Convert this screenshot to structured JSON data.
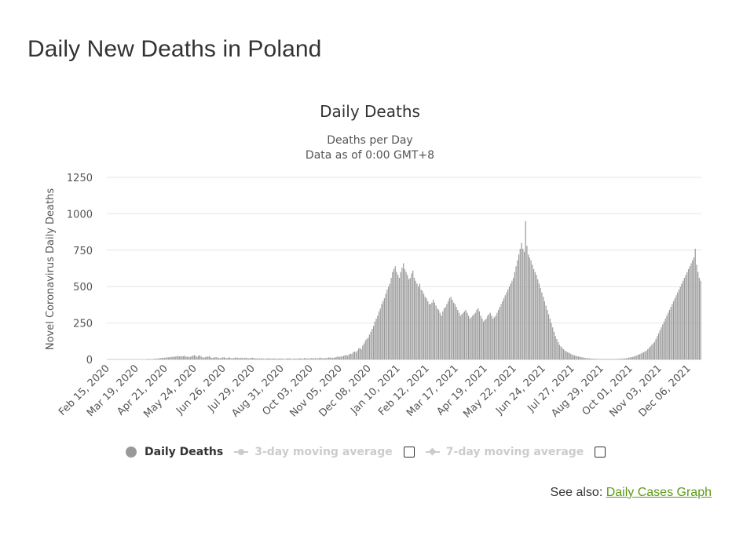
{
  "page": {
    "title": "Daily New Deaths in Poland",
    "see_also_label": "See also:",
    "see_also_link": "Daily Cases Graph"
  },
  "legend": {
    "items": [
      {
        "label": "Daily Deaths",
        "active": true
      },
      {
        "label": "3-day moving average",
        "active": false
      },
      {
        "label": "7-day moving average",
        "active": false
      }
    ]
  },
  "colors": {
    "bar": "#999999",
    "grid": "#e6e6e6",
    "inactive": "#cccccc",
    "link": "#5b9a18"
  },
  "chart_data": {
    "type": "bar",
    "title": "Daily Deaths",
    "subtitle": [
      "Deaths per Day",
      "Data as of 0:00 GMT+8"
    ],
    "ylabel": "Novel Coronavirus Daily Deaths",
    "xlabel": "",
    "ylim": [
      0,
      1250
    ],
    "yticks": [
      0,
      250,
      500,
      750,
      1000,
      1250
    ],
    "xticks": [
      "Feb 15, 2020",
      "Mar 19, 2020",
      "Apr 21, 2020",
      "May 24, 2020",
      "Jun 26, 2020",
      "Jul 29, 2020",
      "Aug 31, 2020",
      "Oct 03, 2020",
      "Nov 05, 2020",
      "Dec 08, 2020",
      "Jan 10, 2021",
      "Feb 12, 2021",
      "Mar 17, 2021",
      "Apr 19, 2021",
      "May 22, 2021",
      "Jun 24, 2021",
      "Jul 27, 2021",
      "Aug 29, 2021",
      "Oct 01, 2021",
      "Nov 03, 2021",
      "Dec 06, 2021"
    ],
    "start_date": "Feb 15, 2020",
    "grid": true,
    "series": [
      {
        "name": "Daily Deaths",
        "values": [
          0,
          0,
          0,
          0,
          0,
          0,
          0,
          0,
          0,
          0,
          0,
          0,
          0,
          0,
          0,
          0,
          0,
          0,
          0,
          0,
          0,
          0,
          0,
          0,
          0,
          0,
          0,
          0,
          0,
          1,
          1,
          1,
          2,
          2,
          3,
          5,
          6,
          5,
          8,
          9,
          10,
          12,
          11,
          13,
          15,
          14,
          16,
          18,
          17,
          20,
          19,
          22,
          24,
          20,
          23,
          21,
          22,
          25,
          18,
          20,
          15,
          18,
          22,
          26,
          30,
          24,
          18,
          25,
          28,
          20,
          15,
          12,
          16,
          18,
          20,
          22,
          15,
          10,
          12,
          14,
          16,
          12,
          10,
          8,
          12,
          14,
          15,
          10,
          9,
          12,
          14,
          8,
          7,
          10,
          12,
          13,
          11,
          9,
          10,
          12,
          8,
          10,
          12,
          9,
          7,
          8,
          10,
          12,
          9,
          6,
          8,
          5,
          7,
          6,
          8,
          5,
          4,
          6,
          8,
          7,
          5,
          6,
          7,
          5,
          6,
          4,
          5,
          7,
          6,
          5,
          4,
          3,
          6,
          8,
          7,
          5,
          4,
          5,
          6,
          5,
          4,
          7,
          8,
          6,
          5,
          9,
          8,
          7,
          6,
          5,
          10,
          8,
          7,
          9,
          6,
          8,
          10,
          12,
          9,
          7,
          8,
          11,
          9,
          13,
          14,
          10,
          12,
          11,
          15,
          18,
          20,
          16,
          22,
          20,
          25,
          28,
          30,
          26,
          35,
          40,
          38,
          50,
          55,
          48,
          60,
          75,
          80,
          70,
          95,
          110,
          130,
          140,
          150,
          170,
          190,
          210,
          230,
          260,
          280,
          300,
          330,
          350,
          380,
          400,
          420,
          450,
          480,
          500,
          520,
          560,
          600,
          620,
          640,
          600,
          580,
          560,
          600,
          630,
          660,
          620,
          600,
          580,
          550,
          560,
          590,
          610,
          560,
          540,
          520,
          500,
          520,
          480,
          470,
          450,
          430,
          420,
          400,
          380,
          380,
          390,
          410,
          390,
          370,
          350,
          340,
          320,
          300,
          330,
          350,
          360,
          380,
          400,
          420,
          430,
          410,
          390,
          380,
          360,
          340,
          320,
          300,
          310,
          320,
          330,
          340,
          320,
          300,
          280,
          290,
          300,
          310,
          320,
          340,
          350,
          330,
          300,
          280,
          260,
          270,
          280,
          300,
          310,
          320,
          300,
          280,
          290,
          300,
          320,
          340,
          360,
          380,
          400,
          420,
          440,
          460,
          480,
          500,
          520,
          540,
          560,
          600,
          640,
          680,
          720,
          760,
          800,
          760,
          740,
          950,
          780,
          720,
          700,
          680,
          650,
          620,
          600,
          580,
          550,
          520,
          490,
          460,
          430,
          400,
          370,
          340,
          310,
          280,
          250,
          220,
          190,
          160,
          140,
          120,
          100,
          90,
          80,
          70,
          60,
          55,
          50,
          45,
          40,
          35,
          30,
          28,
          25,
          22,
          20,
          18,
          16,
          14,
          12,
          10,
          9,
          8,
          7,
          6,
          5,
          5,
          4,
          4,
          3,
          3,
          3,
          2,
          2,
          2,
          2,
          2,
          1,
          1,
          2,
          2,
          2,
          3,
          3,
          4,
          4,
          5,
          5,
          6,
          7,
          8,
          10,
          12,
          14,
          16,
          18,
          20,
          24,
          28,
          32,
          36,
          40,
          45,
          50,
          55,
          60,
          70,
          80,
          90,
          100,
          110,
          120,
          140,
          160,
          180,
          200,
          220,
          240,
          260,
          280,
          300,
          320,
          340,
          360,
          380,
          400,
          420,
          440,
          460,
          480,
          500,
          520,
          540,
          560,
          580,
          600,
          620,
          640,
          660,
          680,
          700,
          760,
          650,
          600,
          560,
          540
        ]
      }
    ]
  }
}
